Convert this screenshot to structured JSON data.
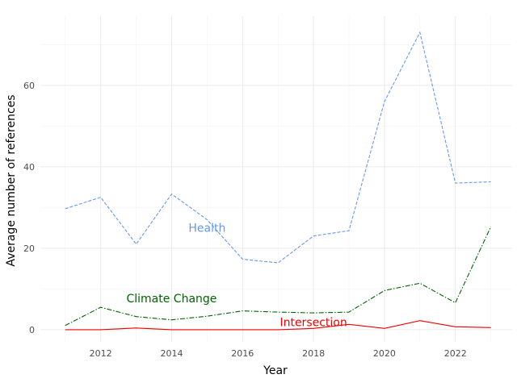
{
  "chart_data": {
    "type": "line",
    "title": "",
    "xlabel": "Year",
    "ylabel": "Average number of references",
    "x": [
      2011,
      2012,
      2013,
      2014,
      2015,
      2016,
      2017,
      2018,
      2019,
      2020,
      2021,
      2022,
      2023
    ],
    "xlim": [
      2010.3,
      2023.6
    ],
    "ylim": [
      -3,
      77
    ],
    "xticks": [
      2012,
      2014,
      2016,
      2018,
      2020,
      2022
    ],
    "yticks": [
      0,
      20,
      40,
      60
    ],
    "grid": true,
    "legend": "none (direct labels)",
    "series": [
      {
        "name": "Health",
        "color": "#6699EE",
        "dash": "dashed",
        "values": [
          29.7,
          32.5,
          21.0,
          33.3,
          27.0,
          17.3,
          16.4,
          23.0,
          24.3,
          56.0,
          73.0,
          36.0,
          36.3
        ],
        "label_at": [
          2015.0,
          25.0
        ]
      },
      {
        "name": "Climate Change",
        "color": "#006400",
        "dash": "dashdot",
        "values": [
          1.0,
          5.5,
          3.2,
          2.4,
          3.3,
          4.6,
          4.3,
          4.1,
          4.3,
          9.6,
          11.4,
          6.6,
          25.3
        ],
        "label_at": [
          2014.0,
          7.7
        ]
      },
      {
        "name": "Intersection",
        "color": "#EE0000",
        "dash": "solid",
        "values": [
          0.0,
          0.0,
          0.4,
          0.0,
          0.0,
          0.0,
          0.0,
          0.3,
          1.3,
          0.3,
          2.2,
          0.7,
          0.5
        ],
        "label_at": [
          2018.0,
          1.9
        ]
      }
    ]
  }
}
